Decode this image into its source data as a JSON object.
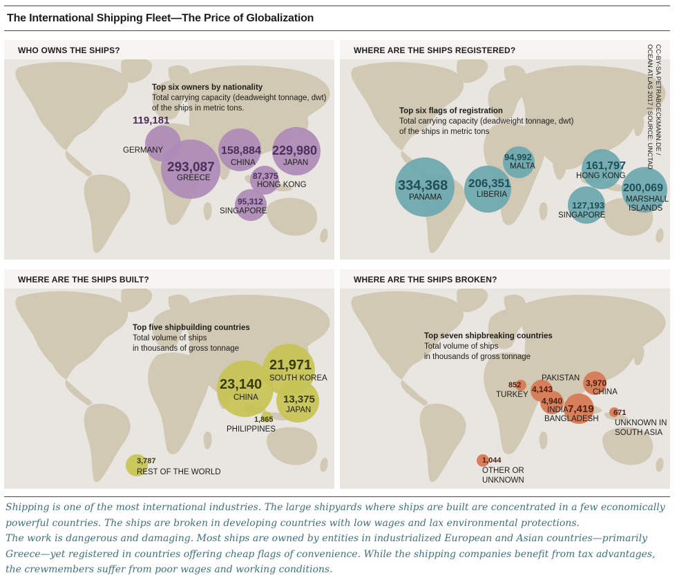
{
  "title": "The International Shipping Fleet—The Price of Globalization",
  "credit": {
    "line1": "CC-BY-SA PETRABOECKMANN.DE /",
    "line2": "OCEAN ATLAS 2017 | SOURCE: UNCTAD"
  },
  "colors": {
    "owners": "#ad8bb7",
    "registered": "#6faab0",
    "built": "#c7c455",
    "broken": "#d77e5b",
    "land": "#d2c9b4",
    "sea": "#e9e6e1"
  },
  "panels": {
    "owners": {
      "heading": "WHO OWNS THE SHIPS?",
      "subtitle": "Top six owners by nationality",
      "desc_line1": "Total carrying capacity (deadweight tonnage, dwt)",
      "desc_line2": "of the ships in metric tons.",
      "items": [
        {
          "country": "GERMANY",
          "value": "119,181"
        },
        {
          "country": "GREECE",
          "value": "293,087"
        },
        {
          "country": "CHINA",
          "value": "158,884"
        },
        {
          "country": "JAPAN",
          "value": "229,980"
        },
        {
          "country": "HONG KONG",
          "value": "87,375"
        },
        {
          "country": "SINGAPORE",
          "value": "95,312"
        }
      ]
    },
    "registered": {
      "heading": "WHERE ARE THE SHIPS REGISTERED?",
      "subtitle": "Top six flags of registration",
      "desc_line1": "Total carrying capacity (deadweight tonnage, dwt)",
      "desc_line2": "of the ships in metric tons",
      "items": [
        {
          "country": "PANAMA",
          "value": "334,368"
        },
        {
          "country": "LIBERIA",
          "value": "206,351"
        },
        {
          "country": "MALTA",
          "value": "94,992"
        },
        {
          "country": "HONG KONG",
          "value": "161,797"
        },
        {
          "country": "MARSHALL",
          "country2": "ISLANDS",
          "value": "200,069"
        },
        {
          "country": "SINGAPORE",
          "value": "127,193"
        }
      ]
    },
    "built": {
      "heading": "WHERE ARE THE SHIPS BUILT?",
      "subtitle": "Top five shipbuilding countries",
      "desc_line1": "Total volume of ships",
      "desc_line2": "in thousands of gross tonnage",
      "items": [
        {
          "country": "CHINA",
          "value": "23,140"
        },
        {
          "country": "SOUTH KOREA",
          "value": "21,971"
        },
        {
          "country": "JAPAN",
          "value": "13,375"
        },
        {
          "country": "PHILIPPINES",
          "value": "1,865"
        },
        {
          "country": "REST OF THE WORLD",
          "value": "3,787"
        }
      ]
    },
    "broken": {
      "heading": "WHERE ARE THE SHIPS BROKEN?",
      "subtitle": "Top seven shipbreaking countries",
      "desc_line1": "Total volume of ships",
      "desc_line2": "in thousands of gross tonnage",
      "items": [
        {
          "country": "TURKEY",
          "value": "852"
        },
        {
          "country": "PAKISTAN",
          "value": "4,143"
        },
        {
          "country": "INDIA",
          "value": "4,940"
        },
        {
          "country": "BANGLADESH",
          "value": "7,419"
        },
        {
          "country": "CHINA",
          "value": "3,970"
        },
        {
          "country": "UNKNOWN IN",
          "country2": "SOUTH ASIA",
          "value": "671"
        },
        {
          "country": "OTHER OR",
          "country2": "UNKNOWN",
          "value": "1,044"
        }
      ]
    }
  },
  "footer": {
    "line1": "Shipping is one of the most international industries. The large shipyards where ships are built are concentrated in a few economically",
    "line2": "powerful countries. The ships are broken in developing countries with low wages and lax environmental protections.",
    "line3": "The work is dangerous and damaging. Most ships are owned by entities in industrialized European and Asian countries—primarily",
    "line4": "Greece—yet registered in countries offering cheap flags of convenience. While the shipping companies benefit from tax advantages,",
    "line5": "the crewmembers suffer from poor wages and working conditions."
  }
}
